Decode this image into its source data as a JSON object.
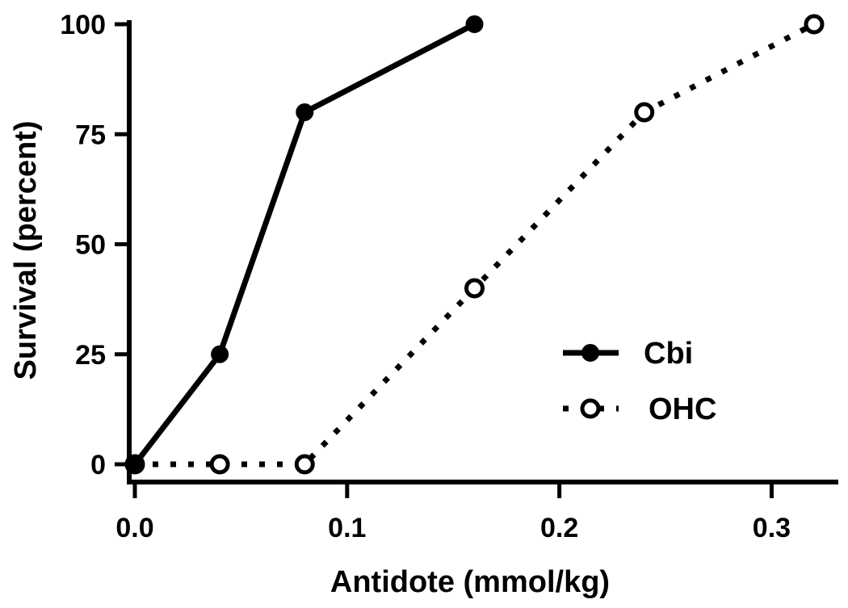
{
  "chart_data": {
    "type": "line",
    "xlabel": "Antidote (mmol/kg)",
    "ylabel": "Survival (percent)",
    "xlim": [
      0,
      0.33
    ],
    "ylim": [
      0,
      100
    ],
    "x_ticks": [
      0.0,
      0.1,
      0.2,
      0.3
    ],
    "x_tick_labels": [
      "0.0",
      "0.1",
      "0.2",
      "0.3"
    ],
    "y_ticks": [
      0,
      25,
      50,
      75,
      100
    ],
    "y_tick_labels": [
      "0",
      "25",
      "50",
      "75",
      "100"
    ],
    "grid": false,
    "legend_position": "right",
    "series": [
      {
        "name": "Cbi",
        "x": [
          0.0,
          0.04,
          0.08,
          0.16
        ],
        "y": [
          0,
          25,
          80,
          100
        ],
        "line": "solid",
        "marker": "filled-circle",
        "color": "#000000"
      },
      {
        "name": "OHC",
        "x": [
          0.0,
          0.04,
          0.08,
          0.16,
          0.24,
          0.32
        ],
        "y": [
          0,
          0,
          0,
          40,
          80,
          100
        ],
        "line": "dotted",
        "marker": "open-circle",
        "color": "#000000"
      }
    ]
  }
}
